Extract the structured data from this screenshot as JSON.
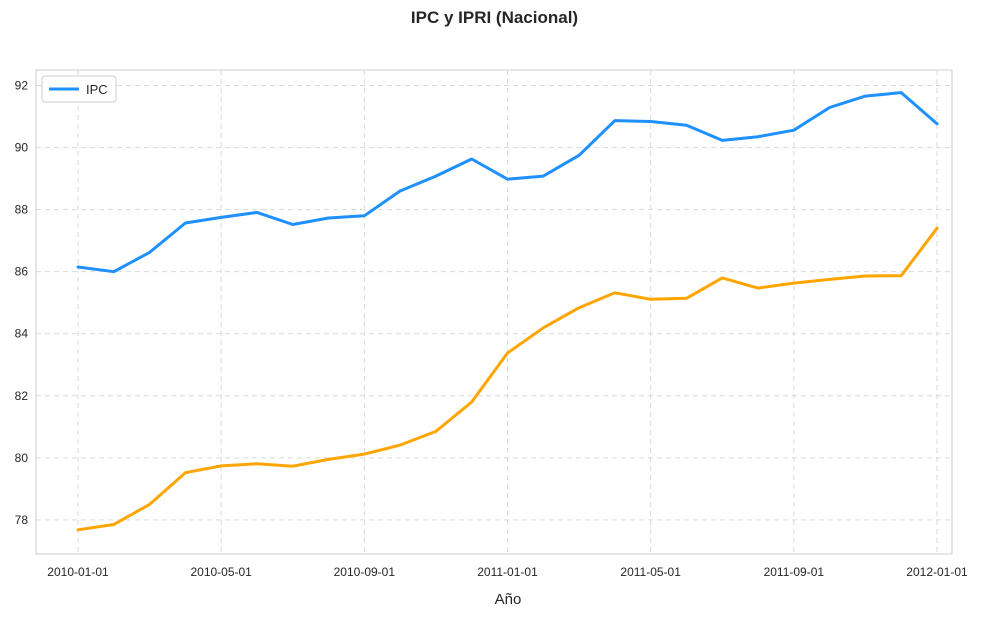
{
  "chart_data": {
    "type": "line",
    "title": "IPC y IPRI (Nacional)",
    "xlabel": "Año",
    "ylabel": "",
    "x": [
      "2010-01-01",
      "2010-02-01",
      "2010-03-01",
      "2010-04-01",
      "2010-05-01",
      "2010-06-01",
      "2010-07-01",
      "2010-08-01",
      "2010-09-01",
      "2010-10-01",
      "2010-11-01",
      "2010-12-01",
      "2011-01-01",
      "2011-02-01",
      "2011-03-01",
      "2011-04-01",
      "2011-05-01",
      "2011-06-01",
      "2011-07-01",
      "2011-08-01",
      "2011-09-01",
      "2011-10-01",
      "2011-11-01",
      "2011-12-01",
      "2012-01-01"
    ],
    "x_ticks": [
      "2010-01-01",
      "2010-05-01",
      "2010-09-01",
      "2011-01-01",
      "2011-05-01",
      "2011-09-01",
      "2012-01-01"
    ],
    "y_ticks": [
      78,
      80,
      82,
      84,
      86,
      88,
      90,
      92
    ],
    "ylim": [
      76.9,
      92.5
    ],
    "grid": true,
    "legend_position": "top-left",
    "series": [
      {
        "name": "IPC",
        "color": "#1e90ff",
        "values": [
          86.15,
          86.0,
          86.62,
          87.57,
          87.75,
          87.91,
          87.52,
          87.73,
          87.8,
          88.6,
          89.08,
          89.63,
          88.98,
          89.08,
          89.75,
          90.87,
          90.84,
          90.72,
          90.23,
          90.35,
          90.56,
          91.29,
          91.66,
          91.77,
          90.77
        ]
      },
      {
        "color": "#ffa500",
        "values": [
          77.68,
          77.85,
          78.5,
          79.52,
          79.74,
          79.81,
          79.73,
          79.95,
          80.12,
          80.41,
          80.85,
          81.8,
          83.38,
          84.19,
          84.84,
          85.32,
          85.11,
          85.14,
          85.8,
          85.47,
          85.63,
          85.75,
          85.86,
          85.87,
          87.4
        ]
      }
    ]
  }
}
